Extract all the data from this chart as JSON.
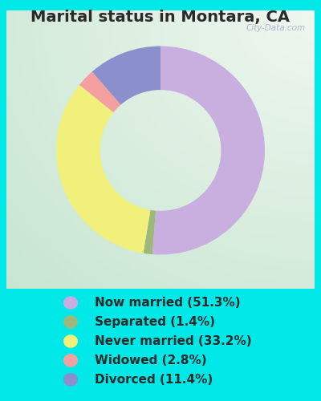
{
  "title": "Marital status in Montara, CA",
  "slices": [
    51.3,
    1.4,
    33.2,
    2.8,
    11.4
  ],
  "labels": [
    "Now married (51.3%)",
    "Separated (1.4%)",
    "Never married (33.2%)",
    "Widowed (2.8%)",
    "Divorced (11.4%)"
  ],
  "colors": [
    "#c9aee0",
    "#9db87a",
    "#f0f07a",
    "#f4a0a0",
    "#8b8fcc"
  ],
  "background_cyan": "#00e8e8",
  "title_fontsize": 14,
  "legend_fontsize": 11,
  "watermark": "City-Data.com"
}
